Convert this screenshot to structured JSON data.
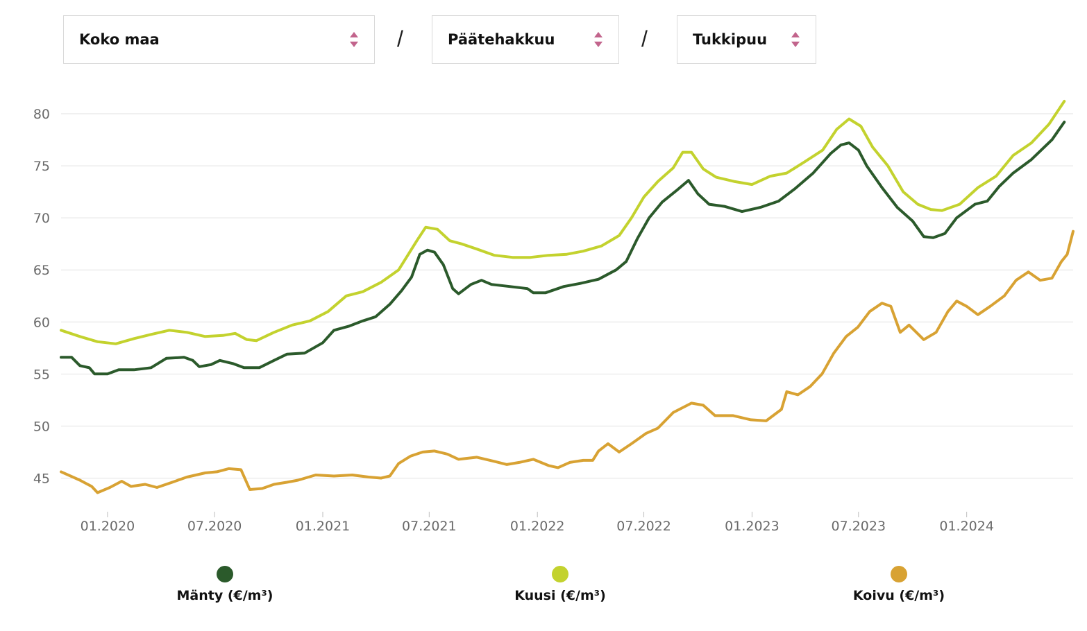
{
  "filters": {
    "region": "Koko maa",
    "cut_type": "Päätehakkuu",
    "assortment": "Tukkipuu",
    "separator": "/"
  },
  "colors": {
    "manty": "#2b5a2b",
    "kuusi": "#c3d22e",
    "koivu": "#d8a233",
    "selector_arrow": "#c2648c",
    "grid": "#e2e2e2"
  },
  "chart_data": {
    "type": "line",
    "title": "",
    "xlabel": "",
    "ylabel": "",
    "ylim": [
      41.5,
      82
    ],
    "y_ticks": [
      45,
      50,
      55,
      60,
      65,
      70,
      75,
      80
    ],
    "x_range": [
      "2019-10-14",
      "2024-06-30"
    ],
    "x_ticks": [
      {
        "date": "2020-01-01",
        "label": "01.2020"
      },
      {
        "date": "2020-07-01",
        "label": "07.2020"
      },
      {
        "date": "2021-01-01",
        "label": "01.2021"
      },
      {
        "date": "2021-07-01",
        "label": "07.2021"
      },
      {
        "date": "2022-01-01",
        "label": "01.2022"
      },
      {
        "date": "2022-07-01",
        "label": "07.2022"
      },
      {
        "date": "2023-01-01",
        "label": "01.2023"
      },
      {
        "date": "2023-07-01",
        "label": "07.2023"
      },
      {
        "date": "2024-01-01",
        "label": "01.2024"
      }
    ],
    "grid": "horizontal",
    "legend_position": "bottom",
    "series": [
      {
        "name": "Mänty (€/m³)",
        "color_key": "manty",
        "points": [
          [
            "2019-10-14",
            56.6
          ],
          [
            "2019-11-01",
            56.6
          ],
          [
            "2019-11-15",
            55.8
          ],
          [
            "2019-12-01",
            55.6
          ],
          [
            "2019-12-10",
            55.0
          ],
          [
            "2020-01-01",
            55.0
          ],
          [
            "2020-01-20",
            55.4
          ],
          [
            "2020-02-15",
            55.4
          ],
          [
            "2020-03-15",
            55.6
          ],
          [
            "2020-04-10",
            56.5
          ],
          [
            "2020-05-10",
            56.6
          ],
          [
            "2020-05-25",
            56.3
          ],
          [
            "2020-06-05",
            55.7
          ],
          [
            "2020-06-25",
            55.9
          ],
          [
            "2020-07-10",
            56.3
          ],
          [
            "2020-08-01",
            56.0
          ],
          [
            "2020-08-20",
            55.6
          ],
          [
            "2020-09-15",
            55.6
          ],
          [
            "2020-10-10",
            56.3
          ],
          [
            "2020-11-01",
            56.9
          ],
          [
            "2020-12-01",
            57.0
          ],
          [
            "2021-01-01",
            58.0
          ],
          [
            "2021-01-20",
            59.2
          ],
          [
            "2021-02-15",
            59.6
          ],
          [
            "2021-03-10",
            60.1
          ],
          [
            "2021-04-01",
            60.5
          ],
          [
            "2021-04-25",
            61.7
          ],
          [
            "2021-05-15",
            63.0
          ],
          [
            "2021-06-01",
            64.3
          ],
          [
            "2021-06-15",
            66.5
          ],
          [
            "2021-06-28",
            66.9
          ],
          [
            "2021-07-10",
            66.7
          ],
          [
            "2021-07-25",
            65.5
          ],
          [
            "2021-08-10",
            63.2
          ],
          [
            "2021-08-20",
            62.7
          ],
          [
            "2021-09-10",
            63.6
          ],
          [
            "2021-09-28",
            64.0
          ],
          [
            "2021-10-15",
            63.6
          ],
          [
            "2021-11-15",
            63.4
          ],
          [
            "2021-12-15",
            63.2
          ],
          [
            "2021-12-25",
            62.8
          ],
          [
            "2022-01-15",
            62.8
          ],
          [
            "2022-02-15",
            63.4
          ],
          [
            "2022-03-15",
            63.7
          ],
          [
            "2022-04-15",
            64.1
          ],
          [
            "2022-05-15",
            65.0
          ],
          [
            "2022-06-01",
            65.8
          ],
          [
            "2022-06-20",
            68.0
          ],
          [
            "2022-07-10",
            70.0
          ],
          [
            "2022-08-01",
            71.5
          ],
          [
            "2022-08-25",
            72.6
          ],
          [
            "2022-09-15",
            73.6
          ],
          [
            "2022-10-01",
            72.3
          ],
          [
            "2022-10-20",
            71.3
          ],
          [
            "2022-11-15",
            71.1
          ],
          [
            "2022-12-15",
            70.6
          ],
          [
            "2023-01-15",
            71.0
          ],
          [
            "2023-02-15",
            71.6
          ],
          [
            "2023-03-15",
            72.8
          ],
          [
            "2023-04-15",
            74.3
          ],
          [
            "2023-05-15",
            76.2
          ],
          [
            "2023-06-01",
            77.0
          ],
          [
            "2023-06-15",
            77.2
          ],
          [
            "2023-07-01",
            76.5
          ],
          [
            "2023-07-15",
            75.0
          ],
          [
            "2023-08-10",
            72.9
          ],
          [
            "2023-09-05",
            71.0
          ],
          [
            "2023-10-01",
            69.7
          ],
          [
            "2023-10-20",
            68.2
          ],
          [
            "2023-11-05",
            68.1
          ],
          [
            "2023-11-25",
            68.5
          ],
          [
            "2023-12-15",
            70.0
          ],
          [
            "2024-01-15",
            71.3
          ],
          [
            "2024-02-05",
            71.6
          ],
          [
            "2024-02-25",
            73.0
          ],
          [
            "2024-03-20",
            74.3
          ],
          [
            "2024-04-20",
            75.6
          ],
          [
            "2024-05-25",
            77.5
          ],
          [
            "2024-06-15",
            79.2
          ]
        ]
      },
      {
        "name": "Kuusi (€/m³)",
        "color_key": "kuusi",
        "points": [
          [
            "2019-10-14",
            59.2
          ],
          [
            "2019-11-15",
            58.6
          ],
          [
            "2019-12-15",
            58.1
          ],
          [
            "2020-01-15",
            57.9
          ],
          [
            "2020-02-15",
            58.4
          ],
          [
            "2020-03-15",
            58.8
          ],
          [
            "2020-04-15",
            59.2
          ],
          [
            "2020-05-15",
            59.0
          ],
          [
            "2020-06-15",
            58.6
          ],
          [
            "2020-07-15",
            58.7
          ],
          [
            "2020-08-05",
            58.9
          ],
          [
            "2020-08-25",
            58.3
          ],
          [
            "2020-09-10",
            58.2
          ],
          [
            "2020-10-10",
            59.0
          ],
          [
            "2020-11-10",
            59.7
          ],
          [
            "2020-12-10",
            60.1
          ],
          [
            "2021-01-10",
            61.0
          ],
          [
            "2021-02-10",
            62.5
          ],
          [
            "2021-03-10",
            62.9
          ],
          [
            "2021-04-10",
            63.8
          ],
          [
            "2021-05-10",
            65.0
          ],
          [
            "2021-06-10",
            67.8
          ],
          [
            "2021-06-25",
            69.1
          ],
          [
            "2021-07-15",
            68.9
          ],
          [
            "2021-08-05",
            67.8
          ],
          [
            "2021-08-25",
            67.5
          ],
          [
            "2021-09-20",
            67.0
          ],
          [
            "2021-10-20",
            66.4
          ],
          [
            "2021-11-20",
            66.2
          ],
          [
            "2021-12-20",
            66.2
          ],
          [
            "2022-01-20",
            66.4
          ],
          [
            "2022-02-20",
            66.5
          ],
          [
            "2022-03-20",
            66.8
          ],
          [
            "2022-04-20",
            67.3
          ],
          [
            "2022-05-20",
            68.3
          ],
          [
            "2022-06-10",
            70.0
          ],
          [
            "2022-07-01",
            72.0
          ],
          [
            "2022-07-25",
            73.5
          ],
          [
            "2022-08-20",
            74.8
          ],
          [
            "2022-09-05",
            76.3
          ],
          [
            "2022-09-20",
            76.3
          ],
          [
            "2022-10-10",
            74.7
          ],
          [
            "2022-11-01",
            73.9
          ],
          [
            "2022-12-01",
            73.5
          ],
          [
            "2023-01-01",
            73.2
          ],
          [
            "2023-02-01",
            74.0
          ],
          [
            "2023-03-01",
            74.3
          ],
          [
            "2023-04-01",
            75.4
          ],
          [
            "2023-05-01",
            76.5
          ],
          [
            "2023-05-25",
            78.5
          ],
          [
            "2023-06-15",
            79.5
          ],
          [
            "2023-07-05",
            78.8
          ],
          [
            "2023-07-25",
            76.8
          ],
          [
            "2023-08-20",
            75.0
          ],
          [
            "2023-09-15",
            72.5
          ],
          [
            "2023-10-10",
            71.3
          ],
          [
            "2023-11-01",
            70.8
          ],
          [
            "2023-11-20",
            70.7
          ],
          [
            "2023-12-20",
            71.3
          ],
          [
            "2024-01-20",
            72.9
          ],
          [
            "2024-02-20",
            74.0
          ],
          [
            "2024-03-20",
            76.0
          ],
          [
            "2024-04-20",
            77.2
          ],
          [
            "2024-05-20",
            79.0
          ],
          [
            "2024-06-15",
            81.2
          ]
        ]
      },
      {
        "name": "Koivu (€/m³)",
        "color_key": "koivu",
        "points": [
          [
            "2019-10-14",
            45.6
          ],
          [
            "2019-11-15",
            44.8
          ],
          [
            "2019-12-05",
            44.2
          ],
          [
            "2019-12-15",
            43.6
          ],
          [
            "2020-01-05",
            44.1
          ],
          [
            "2020-01-25",
            44.7
          ],
          [
            "2020-02-10",
            44.2
          ],
          [
            "2020-03-05",
            44.4
          ],
          [
            "2020-03-25",
            44.1
          ],
          [
            "2020-04-20",
            44.6
          ],
          [
            "2020-05-15",
            45.1
          ],
          [
            "2020-06-15",
            45.5
          ],
          [
            "2020-07-05",
            45.6
          ],
          [
            "2020-07-25",
            45.9
          ],
          [
            "2020-08-15",
            45.8
          ],
          [
            "2020-08-30",
            43.9
          ],
          [
            "2020-09-20",
            44.0
          ],
          [
            "2020-10-10",
            44.4
          ],
          [
            "2020-11-01",
            44.6
          ],
          [
            "2020-11-20",
            44.8
          ],
          [
            "2020-12-20",
            45.3
          ],
          [
            "2021-01-20",
            45.2
          ],
          [
            "2021-02-20",
            45.3
          ],
          [
            "2021-03-20",
            45.1
          ],
          [
            "2021-04-10",
            45.0
          ],
          [
            "2021-04-25",
            45.2
          ],
          [
            "2021-05-10",
            46.4
          ],
          [
            "2021-05-30",
            47.1
          ],
          [
            "2021-06-20",
            47.5
          ],
          [
            "2021-07-10",
            47.6
          ],
          [
            "2021-08-01",
            47.3
          ],
          [
            "2021-08-20",
            46.8
          ],
          [
            "2021-09-20",
            47.0
          ],
          [
            "2021-10-20",
            46.6
          ],
          [
            "2021-11-10",
            46.3
          ],
          [
            "2021-12-01",
            46.5
          ],
          [
            "2021-12-25",
            46.8
          ],
          [
            "2022-01-20",
            46.2
          ],
          [
            "2022-02-05",
            46.0
          ],
          [
            "2022-02-25",
            46.5
          ],
          [
            "2022-03-20",
            46.7
          ],
          [
            "2022-04-05",
            46.7
          ],
          [
            "2022-04-15",
            47.6
          ],
          [
            "2022-05-01",
            48.3
          ],
          [
            "2022-05-20",
            47.5
          ],
          [
            "2022-06-10",
            48.3
          ],
          [
            "2022-07-05",
            49.3
          ],
          [
            "2022-07-25",
            49.8
          ],
          [
            "2022-08-20",
            51.3
          ],
          [
            "2022-09-20",
            52.2
          ],
          [
            "2022-10-10",
            52.0
          ],
          [
            "2022-10-30",
            51.0
          ],
          [
            "2022-11-30",
            51.0
          ],
          [
            "2022-12-30",
            50.6
          ],
          [
            "2023-01-25",
            50.5
          ],
          [
            "2023-02-20",
            51.6
          ],
          [
            "2023-03-01",
            53.3
          ],
          [
            "2023-03-20",
            53.0
          ],
          [
            "2023-04-10",
            53.8
          ],
          [
            "2023-04-30",
            55.0
          ],
          [
            "2023-05-20",
            57.0
          ],
          [
            "2023-06-10",
            58.6
          ],
          [
            "2023-06-30",
            59.5
          ],
          [
            "2023-07-20",
            61.0
          ],
          [
            "2023-08-10",
            61.8
          ],
          [
            "2023-08-25",
            61.5
          ],
          [
            "2023-09-10",
            59.0
          ],
          [
            "2023-09-25",
            59.7
          ],
          [
            "2023-10-20",
            58.3
          ],
          [
            "2023-11-10",
            59.0
          ],
          [
            "2023-11-30",
            61.0
          ],
          [
            "2023-12-15",
            62.0
          ],
          [
            "2024-01-01",
            61.5
          ],
          [
            "2024-01-20",
            60.7
          ],
          [
            "2024-02-10",
            61.5
          ],
          [
            "2024-03-05",
            62.5
          ],
          [
            "2024-03-25",
            64.0
          ],
          [
            "2024-04-15",
            64.8
          ],
          [
            "2024-05-05",
            64.0
          ],
          [
            "2024-05-25",
            64.2
          ],
          [
            "2024-06-10",
            65.8
          ],
          [
            "2024-06-20",
            66.5
          ],
          [
            "2024-06-30",
            68.7
          ]
        ]
      }
    ]
  }
}
